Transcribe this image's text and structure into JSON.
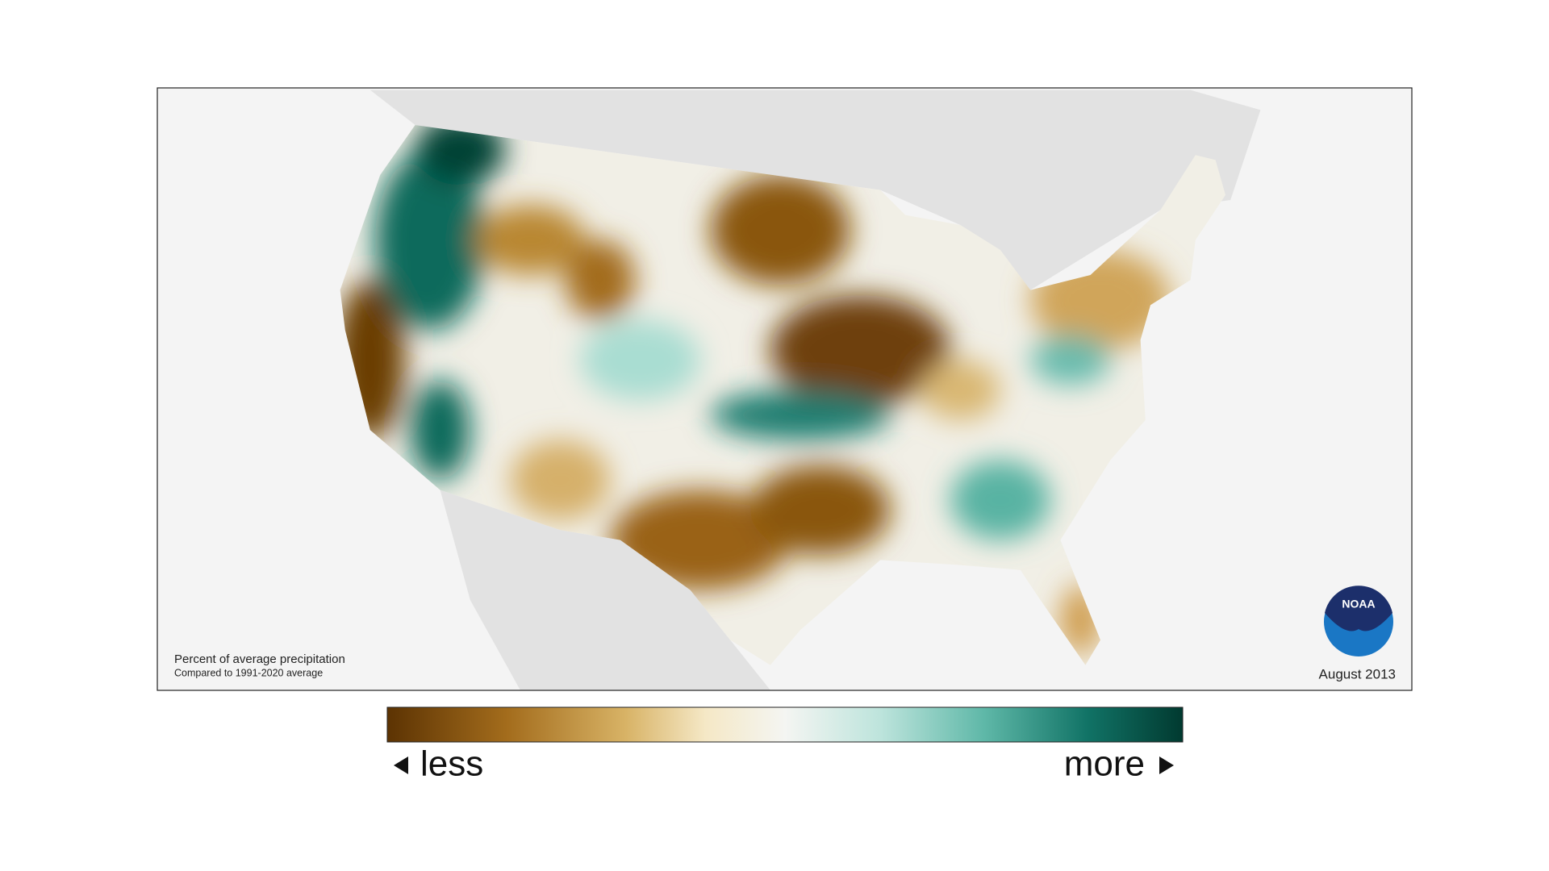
{
  "map": {
    "caption": {
      "title": "Percent of average precipitation",
      "subtitle": "Compared to 1991-2020 average"
    },
    "date": "August 2013",
    "logo": "NOAA",
    "legend": {
      "low": "less",
      "high": "more"
    }
  }
}
